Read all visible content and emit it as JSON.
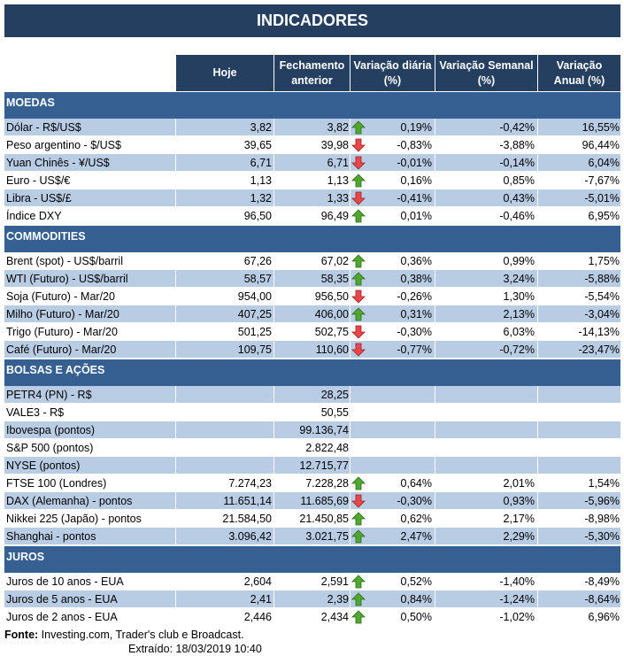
{
  "title": "INDICADORES",
  "columns": [
    "",
    "Hoje",
    "Fechamento anterior",
    "Variação diária (%)",
    "Variação Semanal (%)",
    "Variação Anual (%)"
  ],
  "colors": {
    "title_bg": "#243F60",
    "section_bg": "#366092",
    "row_shade": "#B8CCE4",
    "up": "#4EA72E",
    "down": "#E8484B"
  },
  "sections": [
    {
      "name": "MOEDAS",
      "rows": [
        {
          "label": "Dólar - R$/US$",
          "hoje": "3,82",
          "fech": "3,82",
          "trend": "up",
          "dia": "0,19%",
          "sem": "-0,42%",
          "ano": "16,55%",
          "shaded": true
        },
        {
          "label": "Peso argentino - $/US$",
          "hoje": "39,65",
          "fech": "39,98",
          "trend": "down",
          "dia": "-0,83%",
          "sem": "-3,88%",
          "ano": "96,44%",
          "shaded": false
        },
        {
          "label": "Yuan Chinês - ¥/US$",
          "hoje": "6,71",
          "fech": "6,71",
          "trend": "down",
          "dia": "-0,01%",
          "sem": "-0,14%",
          "ano": "6,04%",
          "shaded": true
        },
        {
          "label": "Euro - US$/€",
          "hoje": "1,13",
          "fech": "1,13",
          "trend": "up",
          "dia": "0,16%",
          "sem": "0,85%",
          "ano": "-7,67%",
          "shaded": false
        },
        {
          "label": "Libra - US$/£",
          "hoje": "1,32",
          "fech": "1,33",
          "trend": "down",
          "dia": "-0,41%",
          "sem": "0,43%",
          "ano": "-5,01%",
          "shaded": true
        },
        {
          "label": "Índice DXY",
          "hoje": "96,50",
          "fech": "96,49",
          "trend": "up",
          "dia": "0,01%",
          "sem": "-0,46%",
          "ano": "6,95%",
          "shaded": false
        }
      ]
    },
    {
      "name": "COMMODITIES",
      "rows": [
        {
          "label": "Brent (spot) - US$/barril",
          "hoje": "67,26",
          "fech": "67,02",
          "trend": "up",
          "dia": "0,36%",
          "sem": "0,99%",
          "ano": "1,75%",
          "shaded": false
        },
        {
          "label": "WTI (Futuro) - US$/barril",
          "hoje": "58,57",
          "fech": "58,35",
          "trend": "up",
          "dia": "0,38%",
          "sem": "3,24%",
          "ano": "-5,88%",
          "shaded": true
        },
        {
          "label": "Soja (Futuro) - Mar/20",
          "hoje": "954,00",
          "fech": "956,50",
          "trend": "down",
          "dia": "-0,26%",
          "sem": "1,30%",
          "ano": "-5,54%",
          "shaded": false
        },
        {
          "label": "Milho (Futuro) - Mar/20",
          "hoje": "407,25",
          "fech": "406,00",
          "trend": "up",
          "dia": "0,31%",
          "sem": "2,13%",
          "ano": "-3,04%",
          "shaded": true
        },
        {
          "label": "Trigo (Futuro) - Mar/20",
          "hoje": "501,25",
          "fech": "502,75",
          "trend": "down",
          "dia": "-0,30%",
          "sem": "6,03%",
          "ano": "-14,13%",
          "shaded": false
        },
        {
          "label": "Café (Futuro) - Mar/20",
          "hoje": "109,75",
          "fech": "110,60",
          "trend": "down",
          "dia": "-0,77%",
          "sem": "-0,72%",
          "ano": "-23,47%",
          "shaded": true
        }
      ]
    },
    {
      "name": "BOLSAS E AÇÕES",
      "rows": [
        {
          "label": "PETR4 (PN) - R$",
          "hoje": "",
          "fech": "28,25",
          "trend": "",
          "dia": "",
          "sem": "",
          "ano": "",
          "shaded": true
        },
        {
          "label": "VALE3 - R$",
          "hoje": "",
          "fech": "50,55",
          "trend": "",
          "dia": "",
          "sem": "",
          "ano": "",
          "shaded": false
        },
        {
          "label": "Ibovespa (pontos)",
          "hoje": "",
          "fech": "99.136,74",
          "trend": "",
          "dia": "",
          "sem": "",
          "ano": "",
          "shaded": true
        },
        {
          "label": "S&P 500 (pontos)",
          "hoje": "",
          "fech": "2.822,48",
          "trend": "",
          "dia": "",
          "sem": "",
          "ano": "",
          "shaded": false
        },
        {
          "label": "NYSE (pontos)",
          "hoje": "",
          "fech": "12.715,77",
          "trend": "",
          "dia": "",
          "sem": "",
          "ano": "",
          "shaded": true
        },
        {
          "label": "FTSE 100 (Londres)",
          "hoje": "7.274,23",
          "fech": "7.228,28",
          "trend": "up",
          "dia": "0,64%",
          "sem": "2,01%",
          "ano": "1,54%",
          "shaded": false
        },
        {
          "label": "DAX (Alemanha) - pontos",
          "hoje": "11.651,14",
          "fech": "11.685,69",
          "trend": "down",
          "dia": "-0,30%",
          "sem": "0,93%",
          "ano": "-5,96%",
          "shaded": true
        },
        {
          "label": "Nikkei 225 (Japão) - pontos",
          "hoje": "21.584,50",
          "fech": "21.450,85",
          "trend": "up",
          "dia": "0,62%",
          "sem": "2,17%",
          "ano": "-8,98%",
          "shaded": false
        },
        {
          "label": "Shanghai - pontos",
          "hoje": "3.096,42",
          "fech": "3.021,75",
          "trend": "up",
          "dia": "2,47%",
          "sem": "2,29%",
          "ano": "-5,30%",
          "shaded": true
        }
      ]
    },
    {
      "name": "JUROS",
      "rows": [
        {
          "label": "Juros de 10 anos - EUA",
          "hoje": "2,604",
          "fech": "2,591",
          "trend": "up",
          "dia": "0,52%",
          "sem": "-1,40%",
          "ano": "-8,49%",
          "shaded": false
        },
        {
          "label": "Juros de 5 anos - EUA",
          "hoje": "2,41",
          "fech": "2,39",
          "trend": "up",
          "dia": "0,84%",
          "sem": "-1,24%",
          "ano": "-8,64%",
          "shaded": true
        },
        {
          "label": "Juros de 2 anos - EUA",
          "hoje": "2,446",
          "fech": "2,434",
          "trend": "up",
          "dia": "0,50%",
          "sem": "-1,02%",
          "ano": "6,96%",
          "shaded": false
        }
      ]
    }
  ],
  "footer": {
    "source_label": "Fonte:",
    "source_text": " Investing.com, Trader's club e Broadcast.",
    "extracted": "Extraído:  18/03/2019 10:40"
  }
}
